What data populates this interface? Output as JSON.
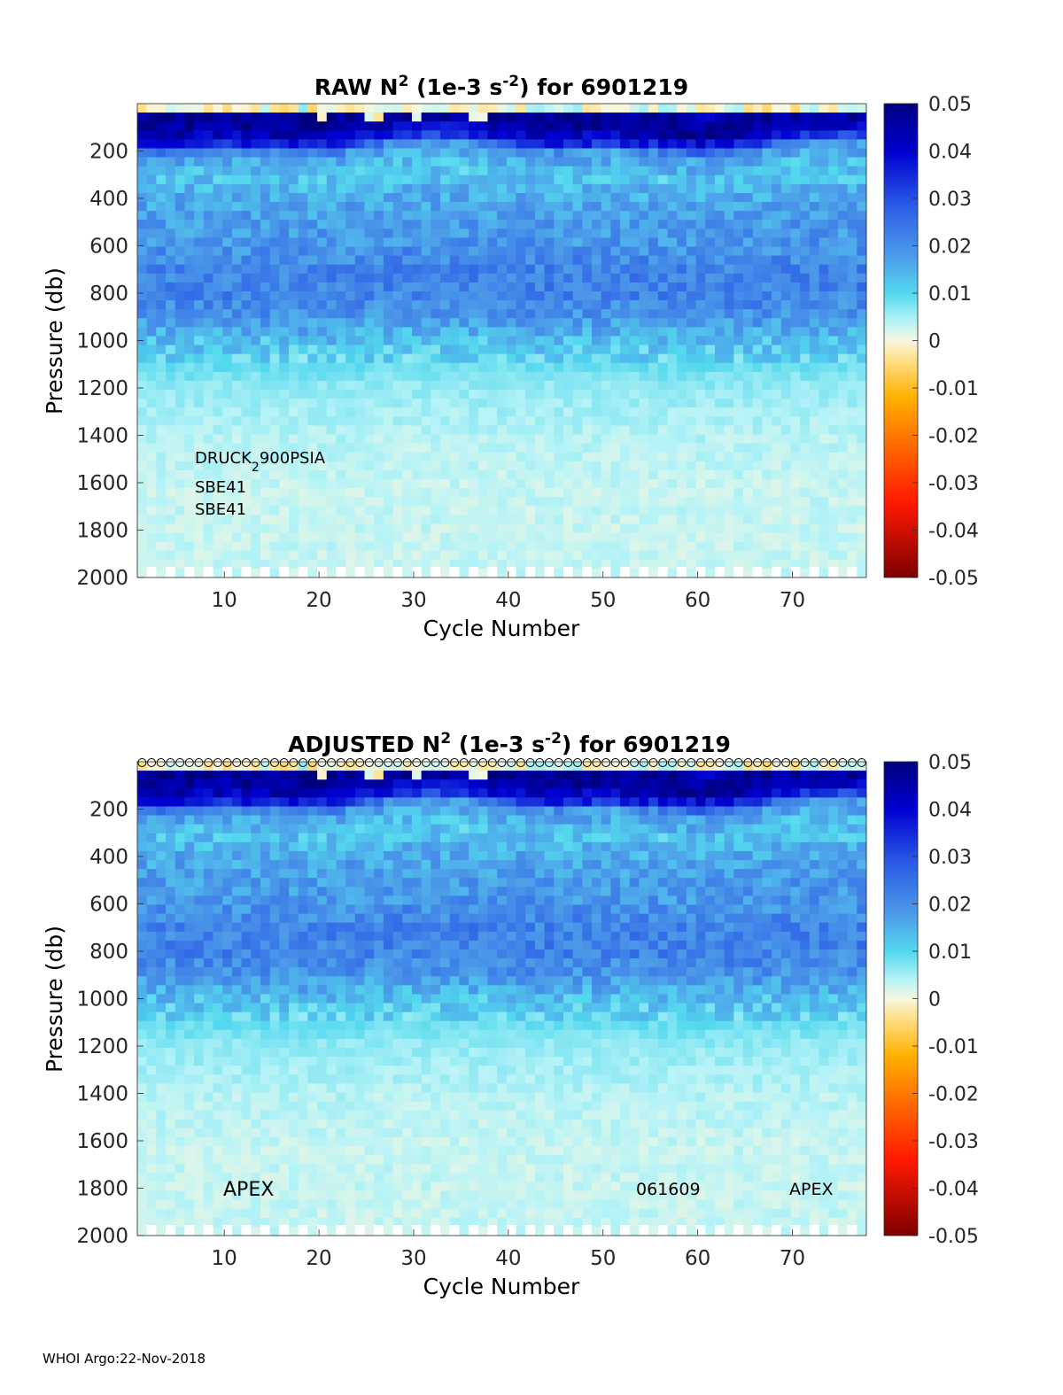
{
  "chart_data": [
    {
      "type": "heatmap",
      "title": {
        "prefix": "RAW N",
        "exp": "2",
        "mid": " (1e-3 s",
        "exp2": "-2",
        "suffix": ") for 6901219"
      },
      "xlabel": "Cycle Number",
      "ylabel": "Pressure (db)",
      "xlim": [
        1,
        77
      ],
      "ylim": [
        0,
        2000
      ],
      "y_reversed": true,
      "xticks": [
        10,
        20,
        30,
        40,
        50,
        60,
        70
      ],
      "yticks": [
        200,
        400,
        600,
        800,
        1000,
        1200,
        1400,
        1600,
        1800,
        2000
      ],
      "colorbar": {
        "min": -0.05,
        "max": 0.05,
        "ticks": [
          "0.05",
          "0.04",
          "0.03",
          "0.02",
          "0.01",
          "0",
          "-0.01",
          "-0.02",
          "-0.03",
          "-0.04",
          "-0.05"
        ]
      },
      "pressure_profile_db": [
        {
          "p": 0,
          "n2": 0.0
        },
        {
          "p": 30,
          "n2": 0.048
        },
        {
          "p": 100,
          "n2": 0.046
        },
        {
          "p": 160,
          "n2": 0.035
        },
        {
          "p": 200,
          "n2": 0.018
        },
        {
          "p": 300,
          "n2": 0.012
        },
        {
          "p": 400,
          "n2": 0.016
        },
        {
          "p": 500,
          "n2": 0.018
        },
        {
          "p": 600,
          "n2": 0.019
        },
        {
          "p": 700,
          "n2": 0.022
        },
        {
          "p": 800,
          "n2": 0.022
        },
        {
          "p": 900,
          "n2": 0.019
        },
        {
          "p": 1000,
          "n2": 0.013
        },
        {
          "p": 1100,
          "n2": 0.009
        },
        {
          "p": 1200,
          "n2": 0.006
        },
        {
          "p": 1400,
          "n2": 0.004
        },
        {
          "p": 1600,
          "n2": 0.003
        },
        {
          "p": 1800,
          "n2": 0.003
        },
        {
          "p": 2000,
          "n2": 0.003
        }
      ],
      "annotations": {
        "sensor_pressure": "DRUCK",
        "sensor_pressure_sub": "2",
        "sensor_pressure_rest": "900PSIA",
        "sensor_temp": "SBE41",
        "sensor_cond": "SBE41"
      }
    },
    {
      "type": "heatmap",
      "title": {
        "prefix": "ADJUSTED N",
        "exp": "2",
        "mid": " (1e-3 s",
        "exp2": "-2",
        "suffix": ") for 6901219"
      },
      "xlabel": "Cycle Number",
      "ylabel": "Pressure (db)",
      "xlim": [
        1,
        77
      ],
      "ylim": [
        0,
        2000
      ],
      "y_reversed": true,
      "xticks": [
        10,
        20,
        30,
        40,
        50,
        60,
        70
      ],
      "yticks": [
        200,
        400,
        600,
        800,
        1000,
        1200,
        1400,
        1600,
        1800,
        2000
      ],
      "colorbar": {
        "min": -0.05,
        "max": 0.05,
        "ticks": [
          "0.05",
          "0.04",
          "0.03",
          "0.02",
          "0.01",
          "0",
          "-0.01",
          "-0.02",
          "-0.03",
          "-0.04",
          "-0.05"
        ]
      },
      "qc_marker_cycles": "1-77",
      "annotations": {
        "left": "APEX",
        "middle": "061609",
        "right": "APEX"
      }
    }
  ],
  "footer": "WHOI Argo:22-Nov-2018"
}
